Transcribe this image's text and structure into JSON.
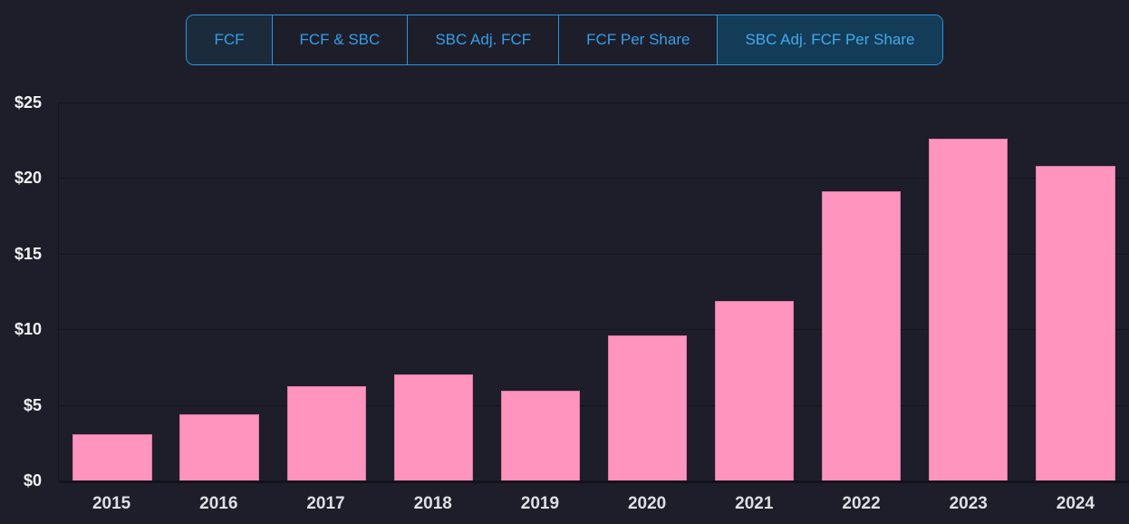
{
  "colors": {
    "background": "#1e1e2b",
    "accent_blue": "#2b96dd",
    "tab_text": "#339fe6",
    "selected_tab_bg": "#123c58",
    "bar_pink": "#ff94be",
    "bar_border_pink": "#dd7aa3"
  },
  "tabs": {
    "items": [
      {
        "label": "FCF",
        "selected": false
      },
      {
        "label": "FCF & SBC",
        "selected": false
      },
      {
        "label": "SBC Adj. FCF",
        "selected": false
      },
      {
        "label": "FCF Per Share",
        "selected": false
      },
      {
        "label": "SBC Adj. FCF Per Share",
        "selected": true
      }
    ]
  },
  "chart_data": {
    "type": "bar",
    "title": "",
    "series_name": "SBC Adj. FCF Per Share",
    "categories": [
      "2015",
      "2016",
      "2017",
      "2018",
      "2019",
      "2020",
      "2021",
      "2022",
      "2023",
      "2024"
    ],
    "values": [
      3.05,
      4.35,
      6.25,
      7.0,
      5.95,
      9.6,
      11.9,
      19.1,
      22.6,
      20.8
    ],
    "currency": "$",
    "ylim": [
      0,
      25
    ],
    "y_ticks": [
      {
        "label": "$25",
        "value": 25
      },
      {
        "label": "$20",
        "value": 20
      },
      {
        "label": "$15",
        "value": 15
      },
      {
        "label": "$10",
        "value": 10
      },
      {
        "label": "$5",
        "value": 5
      },
      {
        "label": "$0",
        "value": 0
      }
    ],
    "grid": "horizontal",
    "legend": "none"
  }
}
